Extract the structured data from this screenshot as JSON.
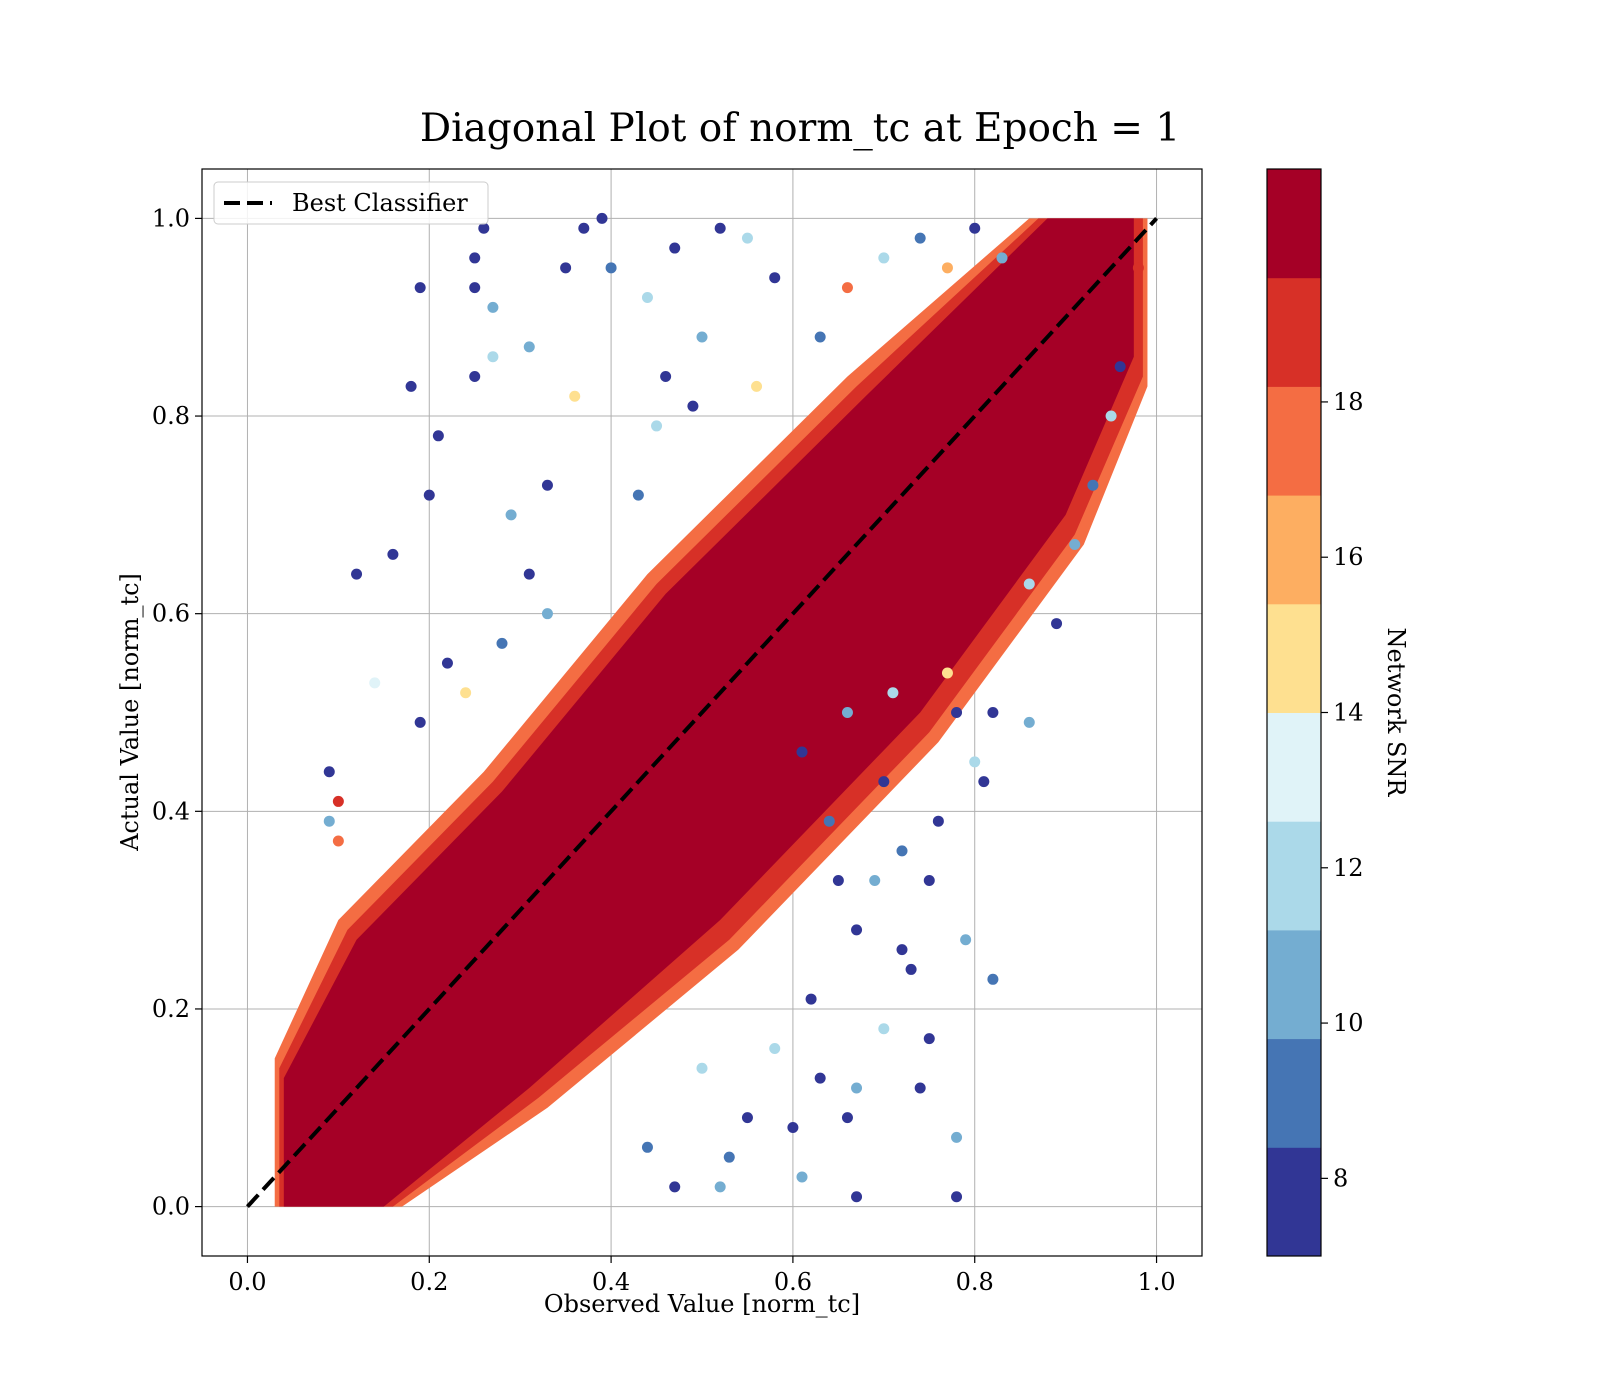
{
  "chart_data": {
    "type": "scatter",
    "title": "Diagonal Plot of norm_tc at Epoch = 1",
    "xlabel": "Observed Value [norm_tc]",
    "ylabel": "Actual Value [norm_tc]",
    "xlim": [
      -0.05,
      1.05
    ],
    "ylim": [
      -0.05,
      1.05
    ],
    "xticks": [
      "0.0",
      "0.2",
      "0.4",
      "0.6",
      "0.8",
      "1.0"
    ],
    "yticks": [
      "0.0",
      "0.2",
      "0.4",
      "0.6",
      "0.8",
      "1.0"
    ],
    "grid": true,
    "legend": {
      "position": "upper-left",
      "entries": [
        "Best Classifier"
      ]
    },
    "reference_line": {
      "name": "Best Classifier",
      "style": "dashed",
      "color": "#000000",
      "x": [
        0.0,
        1.0
      ],
      "y": [
        0.0,
        1.0
      ]
    },
    "colorbar": {
      "label": "Network SNR",
      "colormap": "RdYlBu_r",
      "range": [
        7,
        21
      ],
      "levels": 10,
      "ticks": [
        "8",
        "10",
        "12",
        "14",
        "16",
        "18"
      ],
      "colors": [
        "#313695",
        "#4575b4",
        "#74add1",
        "#abd9e9",
        "#e0f3f8",
        "#fee090",
        "#fdae61",
        "#f46d43",
        "#d73027",
        "#a50026"
      ]
    },
    "series": [
      {
        "points": [
          {
            "x": 0.12,
            "y": 0.64,
            "c": 7.6
          },
          {
            "x": 0.16,
            "y": 0.66,
            "c": 7.4
          },
          {
            "x": 0.18,
            "y": 0.83,
            "c": 7.8
          },
          {
            "x": 0.19,
            "y": 0.93,
            "c": 7.5
          },
          {
            "x": 0.25,
            "y": 0.96,
            "c": 7.3
          },
          {
            "x": 0.26,
            "y": 0.99,
            "c": 7.6
          },
          {
            "x": 0.25,
            "y": 0.93,
            "c": 7.4
          },
          {
            "x": 0.27,
            "y": 0.91,
            "c": 10.1
          },
          {
            "x": 0.25,
            "y": 0.84,
            "c": 7.9
          },
          {
            "x": 0.27,
            "y": 0.86,
            "c": 11.8
          },
          {
            "x": 0.31,
            "y": 0.87,
            "c": 10.5
          },
          {
            "x": 0.35,
            "y": 0.95,
            "c": 7.6
          },
          {
            "x": 0.37,
            "y": 0.99,
            "c": 7.5
          },
          {
            "x": 0.39,
            "y": 1.0,
            "c": 7.7
          },
          {
            "x": 0.4,
            "y": 0.95,
            "c": 8.8
          },
          {
            "x": 0.36,
            "y": 0.82,
            "c": 14.5
          },
          {
            "x": 0.33,
            "y": 0.73,
            "c": 7.4
          },
          {
            "x": 0.21,
            "y": 0.78,
            "c": 7.5
          },
          {
            "x": 0.2,
            "y": 0.72,
            "c": 7.8
          },
          {
            "x": 0.09,
            "y": 0.44,
            "c": 7.4
          },
          {
            "x": 0.1,
            "y": 0.41,
            "c": 19.5
          },
          {
            "x": 0.09,
            "y": 0.39,
            "c": 10.2
          },
          {
            "x": 0.1,
            "y": 0.37,
            "c": 16.8
          },
          {
            "x": 0.19,
            "y": 0.49,
            "c": 7.4
          },
          {
            "x": 0.14,
            "y": 0.53,
            "c": 13.0
          },
          {
            "x": 0.29,
            "y": 0.7,
            "c": 10.4
          },
          {
            "x": 0.44,
            "y": 0.92,
            "c": 12.5
          },
          {
            "x": 0.47,
            "y": 0.97,
            "c": 7.5
          },
          {
            "x": 0.52,
            "y": 0.99,
            "c": 7.9
          },
          {
            "x": 0.55,
            "y": 0.98,
            "c": 11.5
          },
          {
            "x": 0.58,
            "y": 0.94,
            "c": 7.6
          },
          {
            "x": 0.66,
            "y": 0.93,
            "c": 16.8
          },
          {
            "x": 0.63,
            "y": 0.88,
            "c": 8.9
          },
          {
            "x": 0.5,
            "y": 0.88,
            "c": 10.3
          },
          {
            "x": 0.46,
            "y": 0.84,
            "c": 7.4
          },
          {
            "x": 0.43,
            "y": 0.72,
            "c": 8.6
          },
          {
            "x": 0.45,
            "y": 0.79,
            "c": 11.3
          },
          {
            "x": 0.49,
            "y": 0.81,
            "c": 7.6
          },
          {
            "x": 0.56,
            "y": 0.83,
            "c": 14.0
          },
          {
            "x": 0.31,
            "y": 0.64,
            "c": 7.5
          },
          {
            "x": 0.33,
            "y": 0.6,
            "c": 10.6
          },
          {
            "x": 0.28,
            "y": 0.57,
            "c": 8.7
          },
          {
            "x": 0.22,
            "y": 0.55,
            "c": 7.4
          },
          {
            "x": 0.24,
            "y": 0.52,
            "c": 14.3
          },
          {
            "x": 0.61,
            "y": 0.46,
            "c": 7.7
          },
          {
            "x": 0.66,
            "y": 0.5,
            "c": 10.1
          },
          {
            "x": 0.71,
            "y": 0.52,
            "c": 12.4
          },
          {
            "x": 0.78,
            "y": 0.5,
            "c": 7.5
          },
          {
            "x": 0.82,
            "y": 0.5,
            "c": 7.3
          },
          {
            "x": 0.86,
            "y": 0.49,
            "c": 10.2
          },
          {
            "x": 0.8,
            "y": 0.45,
            "c": 11.6
          },
          {
            "x": 0.81,
            "y": 0.43,
            "c": 7.4
          },
          {
            "x": 0.76,
            "y": 0.39,
            "c": 7.8
          },
          {
            "x": 0.72,
            "y": 0.36,
            "c": 8.6
          },
          {
            "x": 0.69,
            "y": 0.33,
            "c": 10.8
          },
          {
            "x": 0.75,
            "y": 0.33,
            "c": 7.5
          },
          {
            "x": 0.67,
            "y": 0.28,
            "c": 7.3
          },
          {
            "x": 0.62,
            "y": 0.21,
            "c": 7.6
          },
          {
            "x": 0.75,
            "y": 0.17,
            "c": 7.4
          },
          {
            "x": 0.79,
            "y": 0.27,
            "c": 10.1
          },
          {
            "x": 0.82,
            "y": 0.23,
            "c": 8.5
          },
          {
            "x": 0.7,
            "y": 0.18,
            "c": 12.3
          },
          {
            "x": 0.73,
            "y": 0.24,
            "c": 7.7
          },
          {
            "x": 0.78,
            "y": 0.07,
            "c": 10.5
          },
          {
            "x": 0.78,
            "y": 0.01,
            "c": 7.4
          },
          {
            "x": 0.67,
            "y": 0.01,
            "c": 7.6
          },
          {
            "x": 0.66,
            "y": 0.09,
            "c": 7.5
          },
          {
            "x": 0.67,
            "y": 0.12,
            "c": 10.4
          },
          {
            "x": 0.74,
            "y": 0.12,
            "c": 7.3
          },
          {
            "x": 0.72,
            "y": 0.26,
            "c": 7.9
          },
          {
            "x": 0.58,
            "y": 0.16,
            "c": 11.4
          },
          {
            "x": 0.55,
            "y": 0.09,
            "c": 7.5
          },
          {
            "x": 0.53,
            "y": 0.05,
            "c": 8.7
          },
          {
            "x": 0.6,
            "y": 0.08,
            "c": 7.6
          },
          {
            "x": 0.61,
            "y": 0.03,
            "c": 10.3
          },
          {
            "x": 0.63,
            "y": 0.13,
            "c": 7.4
          },
          {
            "x": 0.5,
            "y": 0.14,
            "c": 12.2
          },
          {
            "x": 0.47,
            "y": 0.02,
            "c": 7.5
          },
          {
            "x": 0.44,
            "y": 0.06,
            "c": 8.8
          },
          {
            "x": 0.52,
            "y": 0.02,
            "c": 10.7
          },
          {
            "x": 0.65,
            "y": 0.33,
            "c": 7.4
          },
          {
            "x": 0.64,
            "y": 0.39,
            "c": 8.5
          },
          {
            "x": 0.7,
            "y": 0.43,
            "c": 7.6
          },
          {
            "x": 0.77,
            "y": 0.54,
            "c": 14.4
          },
          {
            "x": 0.86,
            "y": 0.63,
            "c": 11.5
          },
          {
            "x": 0.89,
            "y": 0.59,
            "c": 7.4
          },
          {
            "x": 0.91,
            "y": 0.67,
            "c": 10.2
          },
          {
            "x": 0.93,
            "y": 0.73,
            "c": 8.6
          },
          {
            "x": 0.95,
            "y": 0.8,
            "c": 12.1
          },
          {
            "x": 0.96,
            "y": 0.85,
            "c": 7.5
          },
          {
            "x": 0.98,
            "y": 0.95,
            "c": 19.5
          },
          {
            "x": 0.83,
            "y": 0.96,
            "c": 10.3
          },
          {
            "x": 0.8,
            "y": 0.99,
            "c": 7.4
          },
          {
            "x": 0.74,
            "y": 0.98,
            "c": 8.7
          },
          {
            "x": 0.7,
            "y": 0.96,
            "c": 12.6
          },
          {
            "x": 0.77,
            "y": 0.95,
            "c": 16.5
          }
        ]
      }
    ]
  }
}
